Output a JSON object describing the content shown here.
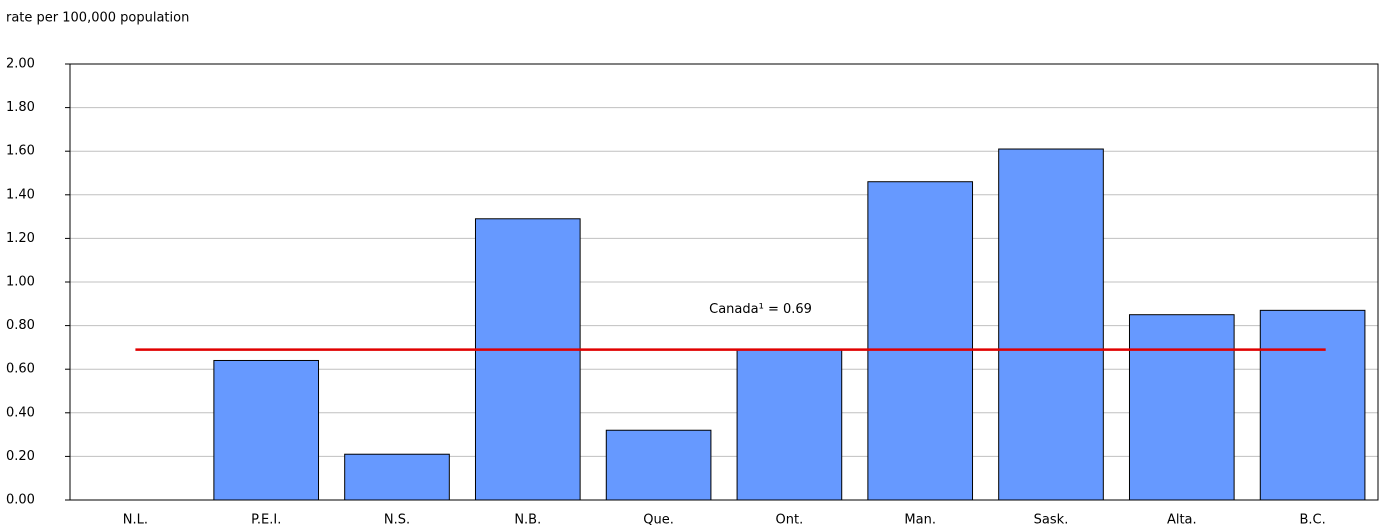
{
  "chart_data": {
    "type": "bar",
    "y_axis_label": "rate per 100,000 population",
    "categories": [
      "N.L.",
      "P.E.I.",
      "N.S.",
      "N.B.",
      "Que.",
      "Ont.",
      "Man.",
      "Sask.",
      "Alta.",
      "B.C."
    ],
    "values": [
      0,
      0.64,
      0.21,
      1.29,
      0.32,
      0.69,
      1.46,
      1.61,
      0.85,
      0.87
    ],
    "color": "#6699ff",
    "ylim": [
      0,
      2
    ],
    "yticks": [
      {
        "value": 0,
        "label": "0.00"
      },
      {
        "value": 0.2,
        "label": "0.20"
      },
      {
        "value": 0.4,
        "label": "0.40"
      },
      {
        "value": 0.6,
        "label": "0.60"
      },
      {
        "value": 0.8,
        "label": "0.80"
      },
      {
        "value": 1,
        "label": "1.00"
      },
      {
        "value": 1.2,
        "label": "1.20"
      },
      {
        "value": 1.4,
        "label": "1.40"
      },
      {
        "value": 1.6,
        "label": "1.60"
      },
      {
        "value": 1.8,
        "label": "1.80"
      },
      {
        "value": 2,
        "label": "2.00"
      }
    ],
    "grid": true,
    "reference_line": {
      "value": 0.69,
      "label": "Canada¹ = 0.69",
      "color": "#e00000"
    }
  }
}
